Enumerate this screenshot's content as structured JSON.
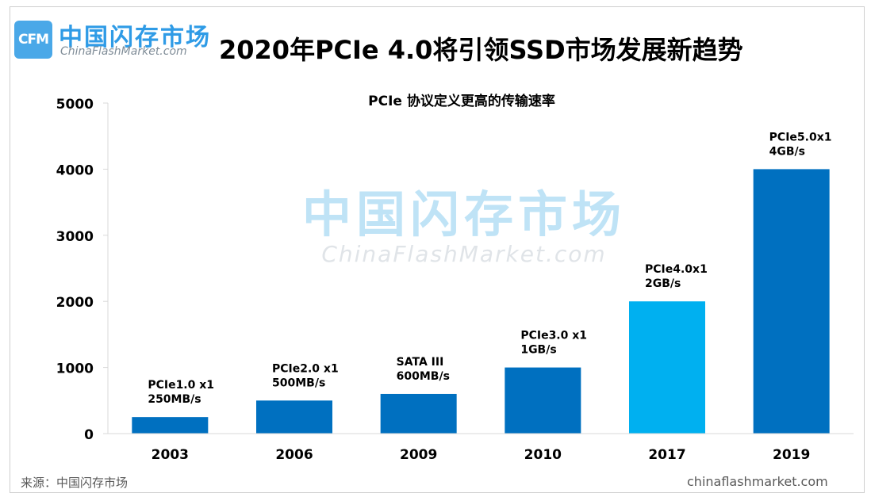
{
  "header": {
    "logo_text": "CFM",
    "brand_cn": "中国闪存市场",
    "brand_en": "ChinaFlashMarket.com",
    "title": "2020年PCIe 4.0将引领SSD市场发展新趋势"
  },
  "watermark": {
    "cn": "中国闪存市场",
    "en": "ChinaFlashMarket.com"
  },
  "footer": {
    "source": "来源：中国闪存市场",
    "site": "chinaflashmarket.com"
  },
  "colors": {
    "bar_primary": "#0070c0",
    "bar_highlight": "#00b0f0",
    "brand": "#2f9be6"
  },
  "chart_data": {
    "type": "bar",
    "title": "PCIe 协议定义更高的传输速率",
    "xlabel": "",
    "ylabel": "",
    "ylim": [
      0,
      5000
    ],
    "yticks": [
      0,
      1000,
      2000,
      3000,
      4000,
      5000
    ],
    "grid": false,
    "categories": [
      "2003",
      "2006",
      "2009",
      "2010",
      "2017",
      "2019"
    ],
    "values": [
      250,
      500,
      600,
      1000,
      2000,
      4000
    ],
    "bar_labels": [
      [
        "PCIe1.0 x1",
        "250MB/s"
      ],
      [
        "PCIe2.0 x1",
        "500MB/s"
      ],
      [
        "SATA  III",
        "600MB/s"
      ],
      [
        "PCIe3.0 x1",
        "1GB/s"
      ],
      [
        "PCIe4.0x1",
        "2GB/s"
      ],
      [
        "PCIe5.0x1",
        "4GB/s"
      ]
    ],
    "highlight_index": 4
  }
}
